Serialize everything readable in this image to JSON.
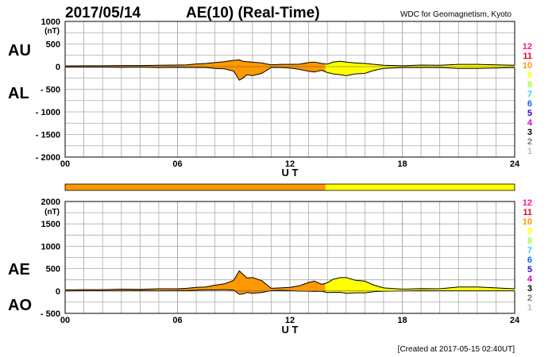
{
  "header": {
    "date": "2017/05/14",
    "title": "AE(10) (Real-Time)",
    "source": "WDC for Geomagnetism, Kyoto"
  },
  "footer": {
    "created": "[Created at 2017-05-15 02:40UT]"
  },
  "station_count_legend": [
    "12",
    "11",
    "10",
    "9",
    "8",
    "7",
    "6",
    "5",
    "4",
    "3",
    "2",
    "1"
  ],
  "colors": {
    "12": "#ff1493",
    "11": "#e8001c",
    "10": "#ff9900",
    "9": "#ffff00",
    "8": "#99ff33",
    "7": "#33ccff",
    "6": "#0066ff",
    "5": "#3300cc",
    "4": "#cc00cc",
    "3": "#000000",
    "2": "#777777",
    "1": "#bbbbbb",
    "grid": "#aaaaaa",
    "trace": "#000000"
  },
  "chart_data": [
    {
      "type": "area",
      "name": "AU-AL",
      "left_labels": [
        "AU",
        "AL"
      ],
      "unit": "(nT)",
      "xlabel": "U T",
      "x_ticks": [
        "00",
        "06",
        "12",
        "18",
        "24"
      ],
      "xlim": [
        0,
        24
      ],
      "ylim": [
        -2000,
        1000
      ],
      "y_ticks": [
        "1000",
        "500",
        "0",
        "- 500",
        "- 1000",
        "- 1500",
        "- 2000"
      ],
      "y_tick_values": [
        1000,
        500,
        0,
        -500,
        -1000,
        -1500,
        -2000
      ],
      "series": [
        {
          "name": "AU",
          "x": [
            0,
            1,
            2,
            3,
            4,
            5,
            6,
            6.5,
            7,
            7.5,
            8,
            8.5,
            9,
            9.3,
            9.5,
            9.7,
            10,
            10.5,
            11,
            11.5,
            12,
            12.5,
            13,
            13.3,
            13.7,
            14,
            14.3,
            14.7,
            15,
            15.5,
            16,
            16.5,
            17,
            18,
            19,
            20,
            21,
            22,
            23,
            24
          ],
          "values": [
            15,
            20,
            20,
            25,
            25,
            30,
            35,
            40,
            60,
            70,
            90,
            110,
            140,
            150,
            120,
            110,
            100,
            80,
            40,
            50,
            50,
            55,
            90,
            100,
            70,
            55,
            100,
            120,
            100,
            80,
            70,
            50,
            30,
            20,
            35,
            30,
            50,
            50,
            40,
            30
          ]
        },
        {
          "name": "AL",
          "x": [
            0,
            1,
            2,
            3,
            4,
            5,
            6,
            6.5,
            7,
            7.5,
            8,
            8.5,
            9,
            9.3,
            9.5,
            9.7,
            10,
            10.5,
            11,
            11.5,
            12,
            12.5,
            13,
            13.3,
            13.7,
            14,
            14.3,
            14.7,
            15,
            15.5,
            16,
            16.5,
            17,
            18,
            19,
            20,
            21,
            22,
            23,
            24
          ],
          "values": [
            -10,
            -10,
            -10,
            -15,
            -10,
            -20,
            -15,
            -20,
            -20,
            -20,
            -40,
            -50,
            -100,
            -300,
            -250,
            -180,
            -200,
            -150,
            -20,
            -20,
            -30,
            -60,
            -100,
            -120,
            -80,
            -130,
            -160,
            -180,
            -200,
            -160,
            -150,
            -80,
            -40,
            -20,
            -20,
            -20,
            -40,
            -40,
            -30,
            -20
          ]
        }
      ],
      "station_bar": [
        {
          "from": 0,
          "to": 13.9,
          "count": "10"
        },
        {
          "from": 13.9,
          "to": 24,
          "count": "9"
        }
      ]
    },
    {
      "type": "area",
      "name": "AE-AO",
      "left_labels": [
        "AE",
        "AO"
      ],
      "unit": "(nT)",
      "xlabel": "U T",
      "x_ticks": [
        "00",
        "06",
        "12",
        "18",
        "24"
      ],
      "xlim": [
        0,
        24
      ],
      "ylim": [
        -500,
        2000
      ],
      "y_ticks": [
        "2000",
        "1500",
        "1000",
        "500",
        "0",
        "- 500"
      ],
      "y_tick_values": [
        2000,
        1500,
        1000,
        500,
        0,
        -500
      ],
      "series": [
        {
          "name": "AE",
          "x": [
            0,
            1,
            2,
            3,
            4,
            5,
            6,
            6.5,
            7,
            7.5,
            8,
            8.5,
            9,
            9.3,
            9.5,
            9.7,
            10,
            10.5,
            11,
            11.5,
            12,
            12.5,
            13,
            13.3,
            13.7,
            14,
            14.3,
            14.7,
            15,
            15.5,
            16,
            16.5,
            17,
            18,
            19,
            20,
            21,
            22,
            23,
            24
          ],
          "values": [
            25,
            30,
            30,
            40,
            35,
            50,
            50,
            60,
            80,
            90,
            130,
            160,
            240,
            450,
            370,
            290,
            300,
            230,
            60,
            70,
            80,
            115,
            190,
            220,
            150,
            185,
            260,
            300,
            300,
            240,
            220,
            130,
            70,
            40,
            55,
            50,
            90,
            90,
            70,
            50
          ]
        },
        {
          "name": "AO",
          "x": [
            0,
            1,
            2,
            3,
            4,
            5,
            6,
            6.5,
            7,
            7.5,
            8,
            8.5,
            9,
            9.3,
            9.5,
            9.7,
            10,
            10.5,
            11,
            11.5,
            12,
            12.5,
            13,
            13.3,
            13.7,
            14,
            14.3,
            14.7,
            15,
            15.5,
            16,
            16.5,
            17,
            18,
            19,
            20,
            21,
            22,
            23,
            24
          ],
          "values": [
            2,
            5,
            5,
            5,
            8,
            5,
            10,
            10,
            20,
            25,
            25,
            30,
            20,
            -75,
            -65,
            -35,
            -50,
            -35,
            10,
            15,
            10,
            -3,
            -5,
            -10,
            -5,
            -38,
            -30,
            -30,
            -50,
            -40,
            -40,
            -15,
            -5,
            0,
            8,
            5,
            5,
            5,
            5,
            5
          ]
        }
      ],
      "station_bar": [
        {
          "from": 0,
          "to": 13.9,
          "count": "10"
        },
        {
          "from": 13.9,
          "to": 24,
          "count": "9"
        }
      ]
    }
  ]
}
